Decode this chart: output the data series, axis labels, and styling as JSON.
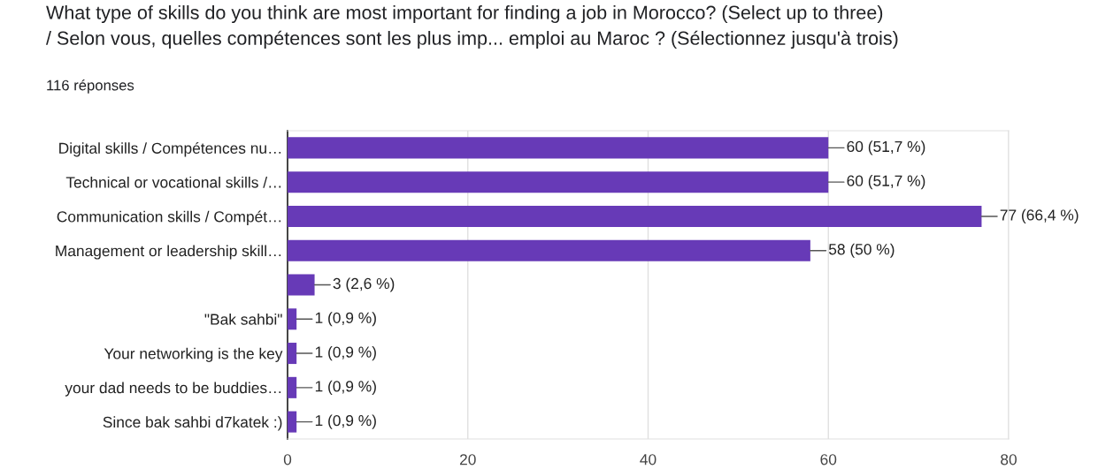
{
  "chart_data": {
    "type": "bar",
    "orientation": "horizontal",
    "title": "What type of skills do you think are most important for finding a job in Morocco? (Select up to three)\n/ Selon vous, quelles compétences sont les plus imp... emploi au Maroc ? (Sélectionnez jusqu'à trois)",
    "subtitle": "116 réponses",
    "categories": [
      "Digital skills / Compétences nu…",
      "Technical or vocational skills /…",
      "Communication skills / Compét…",
      "Management or leadership skill…",
      null,
      "\"Bak sahbi\"",
      "Your networking is the key",
      "your dad needs to be buddies…",
      "Since bak sahbi d7katek :)"
    ],
    "values": [
      60,
      60,
      77,
      58,
      3,
      1,
      1,
      1,
      1
    ],
    "value_labels": [
      "60 (51,7 %)",
      "60 (51,7 %)",
      "77 (66,4 %)",
      "58 (50 %)",
      "3 (2,6 %)",
      "1 (0,9 %)",
      "1 (0,9 %)",
      "1 (0,9 %)",
      "1 (0,9 %)"
    ],
    "color": "#673ab7",
    "xlim": [
      0,
      80
    ],
    "xticks": [
      0,
      20,
      40,
      60,
      80
    ],
    "grid": "x",
    "legend": false
  }
}
